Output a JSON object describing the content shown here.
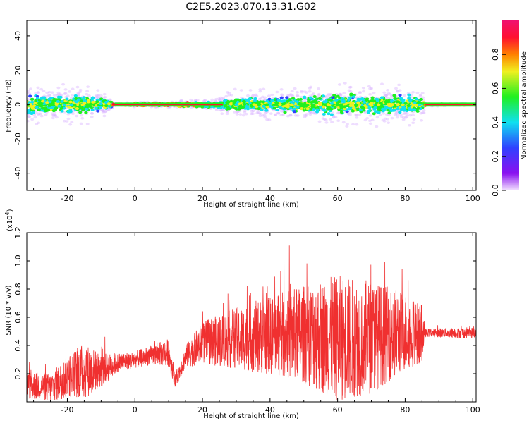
{
  "title": "C2E5.2023.070.13.31.G02",
  "chart_data": [
    {
      "type": "heatmap",
      "xlabel": "Height of straight line (km)",
      "ylabel": "Frequency (Hz)",
      "xlim": [
        -32,
        101
      ],
      "ylim": [
        -50,
        49
      ],
      "xticks": [
        -20,
        0,
        20,
        40,
        60,
        80,
        100
      ],
      "yticks": [
        -40,
        -20,
        0,
        20,
        40
      ],
      "colorbar": {
        "label": "Normalized spectral amplitude",
        "range": [
          0,
          1
        ],
        "ticks": [
          "0.0",
          "0.2",
          "0.4",
          "0.6",
          "0.8"
        ],
        "colormap": [
          "#f3e3ff",
          "#8a10f0",
          "#3040ff",
          "#10e0f0",
          "#20f020",
          "#f0f020",
          "#ff8000",
          "#ff1030",
          "#f01070"
        ]
      },
      "spread_profile": [
        {
          "x": -32,
          "spread_hz": 13
        },
        {
          "x": -20,
          "spread_hz": 12
        },
        {
          "x": -14,
          "spread_hz": 12
        },
        {
          "x": -8,
          "spread_hz": 6
        },
        {
          "x": -6,
          "spread_hz": 1
        },
        {
          "x": 10,
          "spread_hz": 2
        },
        {
          "x": 25,
          "spread_hz": 4
        },
        {
          "x": 27,
          "spread_hz": 8
        },
        {
          "x": 40,
          "spread_hz": 8
        },
        {
          "x": 50,
          "spread_hz": 10
        },
        {
          "x": 60,
          "spread_hz": 13
        },
        {
          "x": 75,
          "spread_hz": 12
        },
        {
          "x": 85,
          "spread_hz": 10
        },
        {
          "x": 86,
          "spread_hz": 1
        },
        {
          "x": 101,
          "spread_hz": 1
        }
      ]
    },
    {
      "type": "line",
      "xlabel": "Height of straight line (km)",
      "ylabel": "SNR (10 * v/v)",
      "ylabel_multiplier": "(x10",
      "ylabel_exponent": "4",
      "ylabel_close": ")",
      "xlim": [
        -32,
        101
      ],
      "ylim": [
        0,
        1.2
      ],
      "xticks": [
        -20,
        0,
        20,
        40,
        60,
        80,
        100
      ],
      "yticks": [
        "0.2",
        "0.4",
        "0.6",
        "0.8",
        "1.0",
        "1.2"
      ],
      "color": "#f03030",
      "envelope": [
        {
          "x": -32,
          "base": 0.12,
          "amp": 0.1
        },
        {
          "x": -25,
          "base": 0.1,
          "amp": 0.1
        },
        {
          "x": -20,
          "base": 0.18,
          "amp": 0.15
        },
        {
          "x": -15,
          "base": 0.22,
          "amp": 0.2
        },
        {
          "x": -10,
          "base": 0.22,
          "amp": 0.12
        },
        {
          "x": -5,
          "base": 0.28,
          "amp": 0.07
        },
        {
          "x": 0,
          "base": 0.3,
          "amp": 0.06
        },
        {
          "x": 5,
          "base": 0.33,
          "amp": 0.07
        },
        {
          "x": 10,
          "base": 0.35,
          "amp": 0.1
        },
        {
          "x": 12,
          "base": 0.15,
          "amp": 0.05
        },
        {
          "x": 15,
          "base": 0.32,
          "amp": 0.08
        },
        {
          "x": 20,
          "base": 0.42,
          "amp": 0.15
        },
        {
          "x": 30,
          "base": 0.45,
          "amp": 0.22
        },
        {
          "x": 40,
          "base": 0.47,
          "amp": 0.28
        },
        {
          "x": 50,
          "base": 0.48,
          "amp": 0.35
        },
        {
          "x": 60,
          "base": 0.45,
          "amp": 0.45
        },
        {
          "x": 70,
          "base": 0.46,
          "amp": 0.4
        },
        {
          "x": 80,
          "base": 0.5,
          "amp": 0.28
        },
        {
          "x": 85,
          "base": 0.48,
          "amp": 0.2
        },
        {
          "x": 86,
          "base": 0.49,
          "amp": 0.03
        },
        {
          "x": 101,
          "base": 0.49,
          "amp": 0.04
        }
      ]
    }
  ]
}
